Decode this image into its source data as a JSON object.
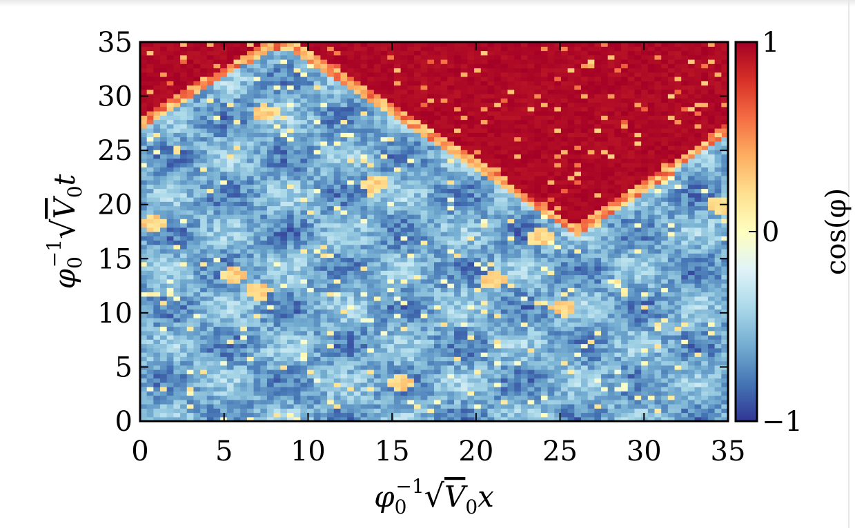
{
  "chart_data": {
    "type": "heatmap",
    "xlabel_parts": [
      "φ",
      "0",
      "−1",
      "√",
      "V",
      "0",
      "x"
    ],
    "ylabel_parts": [
      "φ",
      "0",
      "−1",
      "√",
      "V",
      "0",
      "t"
    ],
    "colorbar_label": "cos(φ)",
    "xlim": [
      0,
      35
    ],
    "ylim": [
      0,
      35
    ],
    "x_ticks": [
      0,
      5,
      10,
      15,
      20,
      25,
      30,
      35
    ],
    "y_ticks": [
      0,
      5,
      10,
      15,
      20,
      25,
      30,
      35
    ],
    "colorbar_range": [
      -1,
      1
    ],
    "colorbar_ticks": [
      {
        "value": 1,
        "label": "1"
      },
      {
        "value": 0,
        "label": "0"
      },
      {
        "value": -1,
        "label": "−1"
      }
    ],
    "colormap": [
      "#a50026",
      "#d73027",
      "#f46d43",
      "#fdae61",
      "#fee090",
      "#ffffbf",
      "#e0f3f8",
      "#abd9e9",
      "#74add1",
      "#4575b4",
      "#313695"
    ],
    "region_boundary": {
      "description_points": [
        {
          "x": 0,
          "t": 27.5
        },
        {
          "x": 7.8,
          "t": 35
        },
        {
          "x": 8.8,
          "t": 35
        },
        {
          "x": 26,
          "t": 17.6
        },
        {
          "x": 35,
          "t": 27
        }
      ],
      "above_value": 1,
      "below_value": -0.6
    },
    "bright_spots": [
      {
        "x": 0.8,
        "t": 18.3
      },
      {
        "x": 7.5,
        "t": 28.5
      },
      {
        "x": 5.5,
        "t": 13.5
      },
      {
        "x": 7,
        "t": 12
      },
      {
        "x": 23.8,
        "t": 17
      },
      {
        "x": 25.2,
        "t": 10.5
      },
      {
        "x": 34.5,
        "t": 20
      },
      {
        "x": 21,
        "t": 13
      },
      {
        "x": 15.5,
        "t": 3.5
      },
      {
        "x": 14,
        "t": 22
      }
    ],
    "grid": false,
    "legend": "none"
  }
}
